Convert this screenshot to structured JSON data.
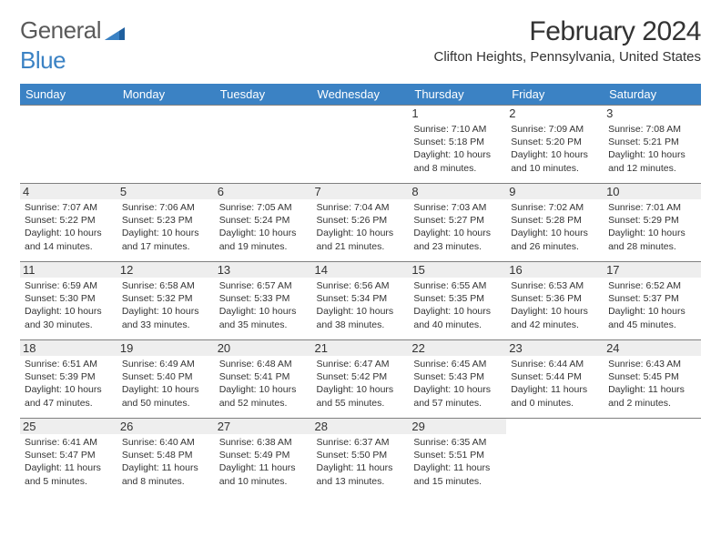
{
  "brand": {
    "part1": "General",
    "part2": "Blue"
  },
  "title": "February 2024",
  "location": "Clifton Heights, Pennsylvania, United States",
  "colors": {
    "header_bg": "#3b82c4",
    "header_text": "#ffffff",
    "border": "#808080",
    "daynum_bg": "#eeeeee",
    "text": "#333333",
    "logo_gray": "#5a5a5a",
    "logo_blue": "#3b82c4"
  },
  "weekdays": [
    "Sunday",
    "Monday",
    "Tuesday",
    "Wednesday",
    "Thursday",
    "Friday",
    "Saturday"
  ],
  "first_weekday_index": 4,
  "days": [
    {
      "n": 1,
      "sunrise": "7:10 AM",
      "sunset": "5:18 PM",
      "daylight": "10 hours and 8 minutes."
    },
    {
      "n": 2,
      "sunrise": "7:09 AM",
      "sunset": "5:20 PM",
      "daylight": "10 hours and 10 minutes."
    },
    {
      "n": 3,
      "sunrise": "7:08 AM",
      "sunset": "5:21 PM",
      "daylight": "10 hours and 12 minutes."
    },
    {
      "n": 4,
      "sunrise": "7:07 AM",
      "sunset": "5:22 PM",
      "daylight": "10 hours and 14 minutes."
    },
    {
      "n": 5,
      "sunrise": "7:06 AM",
      "sunset": "5:23 PM",
      "daylight": "10 hours and 17 minutes."
    },
    {
      "n": 6,
      "sunrise": "7:05 AM",
      "sunset": "5:24 PM",
      "daylight": "10 hours and 19 minutes."
    },
    {
      "n": 7,
      "sunrise": "7:04 AM",
      "sunset": "5:26 PM",
      "daylight": "10 hours and 21 minutes."
    },
    {
      "n": 8,
      "sunrise": "7:03 AM",
      "sunset": "5:27 PM",
      "daylight": "10 hours and 23 minutes."
    },
    {
      "n": 9,
      "sunrise": "7:02 AM",
      "sunset": "5:28 PM",
      "daylight": "10 hours and 26 minutes."
    },
    {
      "n": 10,
      "sunrise": "7:01 AM",
      "sunset": "5:29 PM",
      "daylight": "10 hours and 28 minutes."
    },
    {
      "n": 11,
      "sunrise": "6:59 AM",
      "sunset": "5:30 PM",
      "daylight": "10 hours and 30 minutes."
    },
    {
      "n": 12,
      "sunrise": "6:58 AM",
      "sunset": "5:32 PM",
      "daylight": "10 hours and 33 minutes."
    },
    {
      "n": 13,
      "sunrise": "6:57 AM",
      "sunset": "5:33 PM",
      "daylight": "10 hours and 35 minutes."
    },
    {
      "n": 14,
      "sunrise": "6:56 AM",
      "sunset": "5:34 PM",
      "daylight": "10 hours and 38 minutes."
    },
    {
      "n": 15,
      "sunrise": "6:55 AM",
      "sunset": "5:35 PM",
      "daylight": "10 hours and 40 minutes."
    },
    {
      "n": 16,
      "sunrise": "6:53 AM",
      "sunset": "5:36 PM",
      "daylight": "10 hours and 42 minutes."
    },
    {
      "n": 17,
      "sunrise": "6:52 AM",
      "sunset": "5:37 PM",
      "daylight": "10 hours and 45 minutes."
    },
    {
      "n": 18,
      "sunrise": "6:51 AM",
      "sunset": "5:39 PM",
      "daylight": "10 hours and 47 minutes."
    },
    {
      "n": 19,
      "sunrise": "6:49 AM",
      "sunset": "5:40 PM",
      "daylight": "10 hours and 50 minutes."
    },
    {
      "n": 20,
      "sunrise": "6:48 AM",
      "sunset": "5:41 PM",
      "daylight": "10 hours and 52 minutes."
    },
    {
      "n": 21,
      "sunrise": "6:47 AM",
      "sunset": "5:42 PM",
      "daylight": "10 hours and 55 minutes."
    },
    {
      "n": 22,
      "sunrise": "6:45 AM",
      "sunset": "5:43 PM",
      "daylight": "10 hours and 57 minutes."
    },
    {
      "n": 23,
      "sunrise": "6:44 AM",
      "sunset": "5:44 PM",
      "daylight": "11 hours and 0 minutes."
    },
    {
      "n": 24,
      "sunrise": "6:43 AM",
      "sunset": "5:45 PM",
      "daylight": "11 hours and 2 minutes."
    },
    {
      "n": 25,
      "sunrise": "6:41 AM",
      "sunset": "5:47 PM",
      "daylight": "11 hours and 5 minutes."
    },
    {
      "n": 26,
      "sunrise": "6:40 AM",
      "sunset": "5:48 PM",
      "daylight": "11 hours and 8 minutes."
    },
    {
      "n": 27,
      "sunrise": "6:38 AM",
      "sunset": "5:49 PM",
      "daylight": "11 hours and 10 minutes."
    },
    {
      "n": 28,
      "sunrise": "6:37 AM",
      "sunset": "5:50 PM",
      "daylight": "11 hours and 13 minutes."
    },
    {
      "n": 29,
      "sunrise": "6:35 AM",
      "sunset": "5:51 PM",
      "daylight": "11 hours and 15 minutes."
    }
  ],
  "labels": {
    "sunrise": "Sunrise:",
    "sunset": "Sunset:",
    "daylight": "Daylight:"
  }
}
